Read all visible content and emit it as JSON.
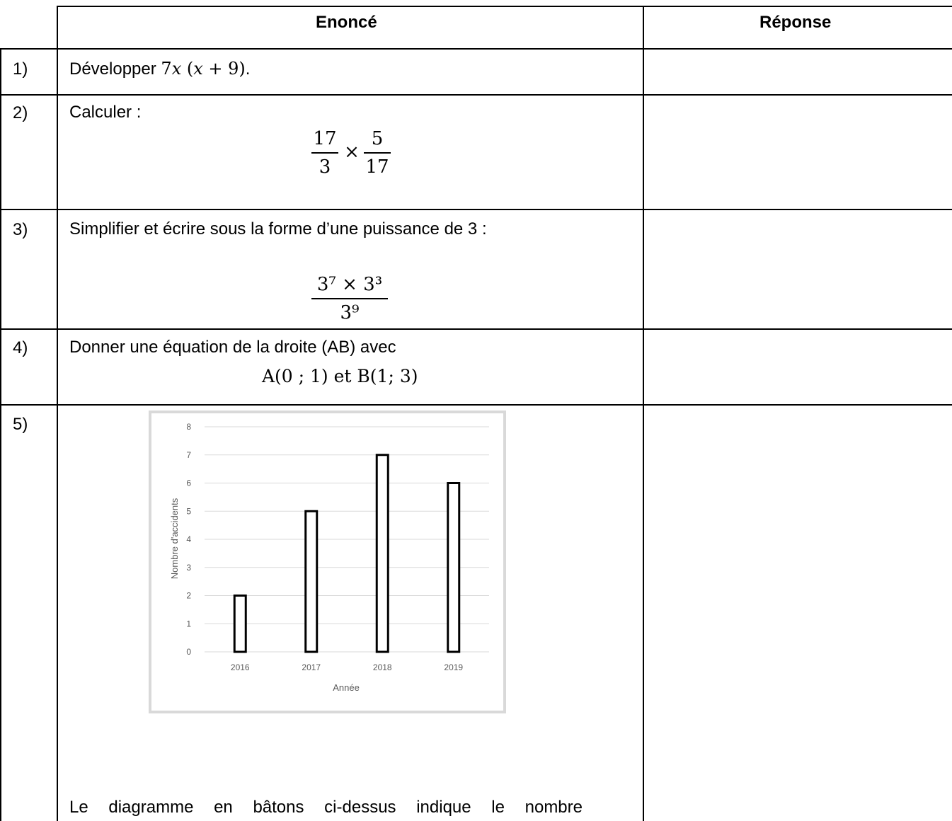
{
  "header": {
    "col_enonce": "Enoncé",
    "col_reponse": "Réponse"
  },
  "rows": [
    {
      "num": "1)",
      "text_before": "Développer ",
      "math": "7𝑥 (𝑥 + 9)",
      "text_after": "."
    },
    {
      "num": "2)",
      "text": "Calculer :",
      "frac1": {
        "n": "17",
        "d": "3"
      },
      "op": "×",
      "frac2": {
        "n": "5",
        "d": "17"
      }
    },
    {
      "num": "3)",
      "text": "Simplifier et écrire sous la forme d’une puissance de 3 :",
      "numerator": "3⁷ × 3³",
      "denominator": "3⁹"
    },
    {
      "num": "4)",
      "text": "Donner une équation de la droite (AB) avec",
      "points": "A(0 ; 1) et B(1; 3)"
    },
    {
      "num": "5)",
      "text": "Le diagramme en bâtons ci-dessus indique le nombre"
    }
  ],
  "chart_data": {
    "type": "bar",
    "categories": [
      "2016",
      "2017",
      "2018",
      "2019"
    ],
    "values": [
      2,
      5,
      7,
      6
    ],
    "title": "",
    "xlabel": "Année",
    "ylabel": "Nombre d'accidents",
    "ylim": [
      0,
      8
    ],
    "yticks": [
      0,
      1,
      2,
      3,
      4,
      5,
      6,
      7,
      8
    ],
    "grid": true,
    "bar_fill": "#ffffff",
    "bar_stroke": "#000000",
    "grid_color": "#d9d9d9"
  }
}
